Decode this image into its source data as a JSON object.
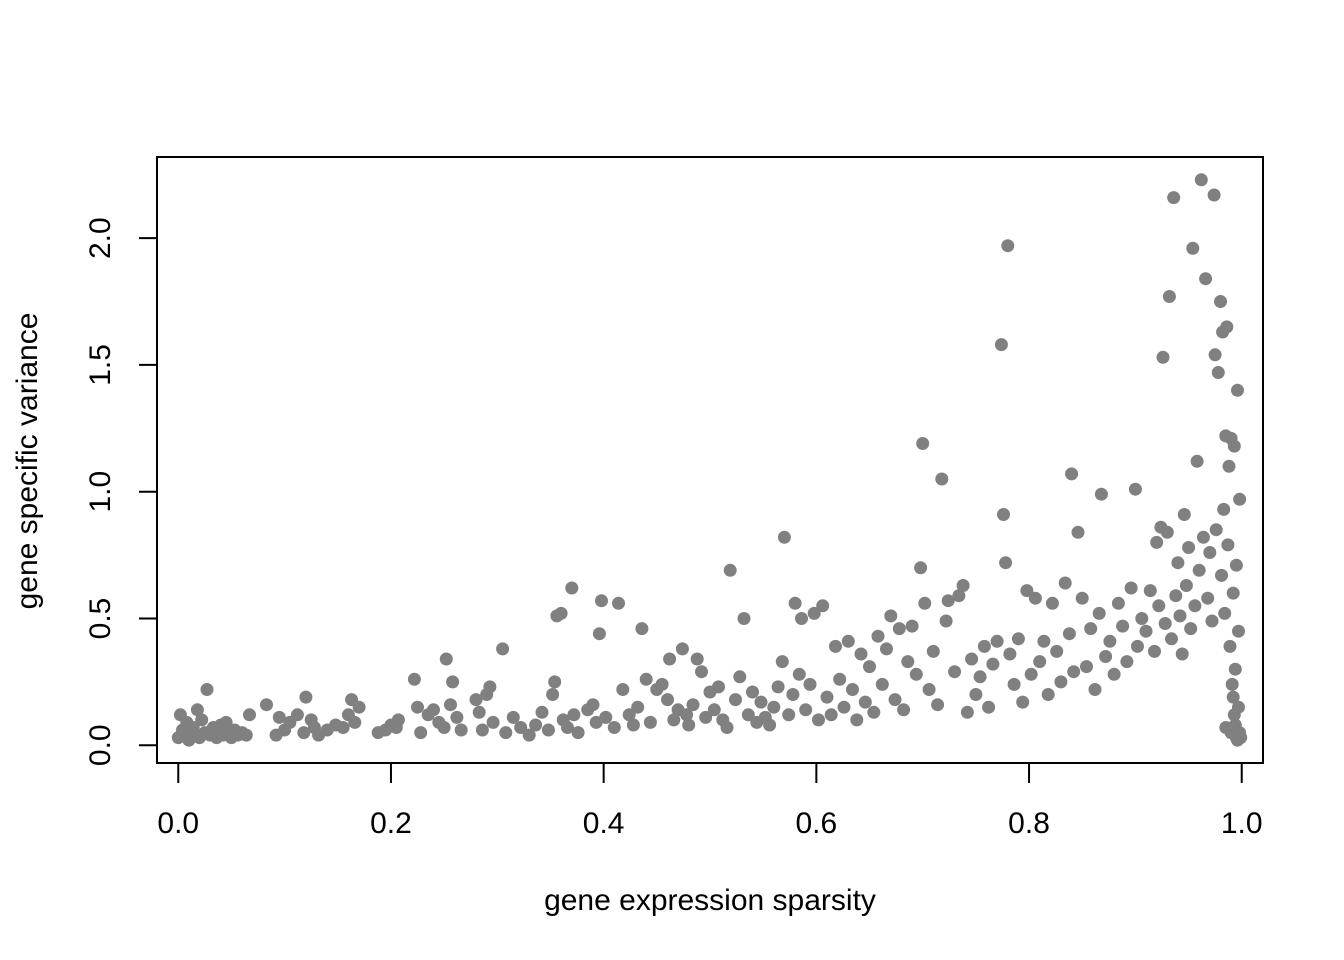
{
  "chart_data": {
    "type": "scatter",
    "title": "",
    "xlabel": "gene expression sparsity",
    "ylabel": "gene specific variance",
    "xlim": [
      -0.02,
      1.02
    ],
    "ylim": [
      -0.07,
      2.32
    ],
    "x_ticks": [
      0.0,
      0.2,
      0.4,
      0.6,
      0.8,
      1.0
    ],
    "x_tick_labels": [
      "0.0",
      "0.2",
      "0.4",
      "0.6",
      "0.8",
      "1.0"
    ],
    "y_ticks": [
      0.0,
      0.5,
      1.0,
      1.5,
      2.0
    ],
    "y_tick_labels": [
      "0.0",
      "0.5",
      "1.0",
      "1.5",
      "2.0"
    ],
    "grid": false,
    "point_color": "#808080",
    "series": [
      {
        "points": [
          [
            0.0,
            0.03
          ],
          [
            0.002,
            0.12
          ],
          [
            0.004,
            0.06
          ],
          [
            0.006,
            0.04
          ],
          [
            0.008,
            0.09
          ],
          [
            0.01,
            0.02
          ],
          [
            0.012,
            0.05
          ],
          [
            0.014,
            0.07
          ],
          [
            0.017,
            0.04
          ],
          [
            0.018,
            0.14
          ],
          [
            0.02,
            0.03
          ],
          [
            0.022,
            0.1
          ],
          [
            0.025,
            0.05
          ],
          [
            0.027,
            0.22
          ],
          [
            0.03,
            0.04
          ],
          [
            0.033,
            0.07
          ],
          [
            0.036,
            0.03
          ],
          [
            0.038,
            0.06
          ],
          [
            0.04,
            0.08
          ],
          [
            0.042,
            0.04
          ],
          [
            0.045,
            0.09
          ],
          [
            0.048,
            0.05
          ],
          [
            0.05,
            0.03
          ],
          [
            0.053,
            0.06
          ],
          [
            0.056,
            0.04
          ],
          [
            0.06,
            0.05
          ],
          [
            0.064,
            0.04
          ],
          [
            0.067,
            0.12
          ],
          [
            0.083,
            0.16
          ],
          [
            0.092,
            0.04
          ],
          [
            0.095,
            0.11
          ],
          [
            0.1,
            0.06
          ],
          [
            0.105,
            0.09
          ],
          [
            0.112,
            0.12
          ],
          [
            0.118,
            0.05
          ],
          [
            0.12,
            0.19
          ],
          [
            0.125,
            0.1
          ],
          [
            0.128,
            0.07
          ],
          [
            0.132,
            0.04
          ],
          [
            0.14,
            0.06
          ],
          [
            0.148,
            0.08
          ],
          [
            0.155,
            0.07
          ],
          [
            0.16,
            0.12
          ],
          [
            0.163,
            0.18
          ],
          [
            0.166,
            0.09
          ],
          [
            0.17,
            0.15
          ],
          [
            0.188,
            0.05
          ],
          [
            0.195,
            0.06
          ],
          [
            0.2,
            0.08
          ],
          [
            0.205,
            0.07
          ],
          [
            0.207,
            0.1
          ],
          [
            0.222,
            0.26
          ],
          [
            0.225,
            0.15
          ],
          [
            0.228,
            0.05
          ],
          [
            0.235,
            0.12
          ],
          [
            0.24,
            0.14
          ],
          [
            0.245,
            0.09
          ],
          [
            0.25,
            0.07
          ],
          [
            0.252,
            0.34
          ],
          [
            0.256,
            0.16
          ],
          [
            0.258,
            0.25
          ],
          [
            0.262,
            0.11
          ],
          [
            0.266,
            0.06
          ],
          [
            0.28,
            0.18
          ],
          [
            0.283,
            0.13
          ],
          [
            0.286,
            0.06
          ],
          [
            0.29,
            0.2
          ],
          [
            0.293,
            0.23
          ],
          [
            0.296,
            0.09
          ],
          [
            0.305,
            0.38
          ],
          [
            0.308,
            0.05
          ],
          [
            0.315,
            0.11
          ],
          [
            0.322,
            0.07
          ],
          [
            0.33,
            0.04
          ],
          [
            0.336,
            0.08
          ],
          [
            0.342,
            0.13
          ],
          [
            0.348,
            0.06
          ],
          [
            0.352,
            0.2
          ],
          [
            0.354,
            0.25
          ],
          [
            0.356,
            0.51
          ],
          [
            0.36,
            0.52
          ],
          [
            0.362,
            0.1
          ],
          [
            0.366,
            0.07
          ],
          [
            0.37,
            0.62
          ],
          [
            0.372,
            0.12
          ],
          [
            0.376,
            0.05
          ],
          [
            0.385,
            0.14
          ],
          [
            0.39,
            0.16
          ],
          [
            0.393,
            0.09
          ],
          [
            0.396,
            0.44
          ],
          [
            0.398,
            0.57
          ],
          [
            0.402,
            0.11
          ],
          [
            0.41,
            0.07
          ],
          [
            0.414,
            0.56
          ],
          [
            0.418,
            0.22
          ],
          [
            0.424,
            0.12
          ],
          [
            0.428,
            0.08
          ],
          [
            0.432,
            0.15
          ],
          [
            0.436,
            0.46
          ],
          [
            0.44,
            0.26
          ],
          [
            0.444,
            0.09
          ],
          [
            0.45,
            0.22
          ],
          [
            0.455,
            0.24
          ],
          [
            0.46,
            0.18
          ],
          [
            0.462,
            0.34
          ],
          [
            0.466,
            0.1
          ],
          [
            0.47,
            0.14
          ],
          [
            0.474,
            0.38
          ],
          [
            0.478,
            0.12
          ],
          [
            0.48,
            0.08
          ],
          [
            0.484,
            0.16
          ],
          [
            0.488,
            0.34
          ],
          [
            0.492,
            0.29
          ],
          [
            0.496,
            0.11
          ],
          [
            0.5,
            0.21
          ],
          [
            0.504,
            0.14
          ],
          [
            0.508,
            0.23
          ],
          [
            0.512,
            0.1
          ],
          [
            0.516,
            0.07
          ],
          [
            0.519,
            0.69
          ],
          [
            0.524,
            0.18
          ],
          [
            0.528,
            0.27
          ],
          [
            0.532,
            0.5
          ],
          [
            0.536,
            0.12
          ],
          [
            0.54,
            0.21
          ],
          [
            0.544,
            0.09
          ],
          [
            0.548,
            0.17
          ],
          [
            0.552,
            0.11
          ],
          [
            0.556,
            0.08
          ],
          [
            0.56,
            0.15
          ],
          [
            0.564,
            0.23
          ],
          [
            0.568,
            0.33
          ],
          [
            0.57,
            0.82
          ],
          [
            0.574,
            0.12
          ],
          [
            0.578,
            0.2
          ],
          [
            0.58,
            0.56
          ],
          [
            0.584,
            0.28
          ],
          [
            0.586,
            0.5
          ],
          [
            0.59,
            0.14
          ],
          [
            0.594,
            0.24
          ],
          [
            0.598,
            0.52
          ],
          [
            0.602,
            0.1
          ],
          [
            0.606,
            0.55
          ],
          [
            0.61,
            0.19
          ],
          [
            0.614,
            0.12
          ],
          [
            0.618,
            0.39
          ],
          [
            0.622,
            0.26
          ],
          [
            0.626,
            0.15
          ],
          [
            0.63,
            0.41
          ],
          [
            0.634,
            0.22
          ],
          [
            0.638,
            0.1
          ],
          [
            0.642,
            0.36
          ],
          [
            0.646,
            0.17
          ],
          [
            0.65,
            0.31
          ],
          [
            0.654,
            0.13
          ],
          [
            0.658,
            0.43
          ],
          [
            0.662,
            0.24
          ],
          [
            0.666,
            0.38
          ],
          [
            0.67,
            0.51
          ],
          [
            0.674,
            0.18
          ],
          [
            0.678,
            0.46
          ],
          [
            0.682,
            0.14
          ],
          [
            0.686,
            0.33
          ],
          [
            0.69,
            0.47
          ],
          [
            0.694,
            0.28
          ],
          [
            0.698,
            0.7
          ],
          [
            0.7,
            1.19
          ],
          [
            0.702,
            0.56
          ],
          [
            0.706,
            0.22
          ],
          [
            0.71,
            0.37
          ],
          [
            0.714,
            0.16
          ],
          [
            0.718,
            1.05
          ],
          [
            0.722,
            0.49
          ],
          [
            0.724,
            0.57
          ],
          [
            0.73,
            0.29
          ],
          [
            0.734,
            0.59
          ],
          [
            0.738,
            0.63
          ],
          [
            0.742,
            0.13
          ],
          [
            0.746,
            0.34
          ],
          [
            0.75,
            0.2
          ],
          [
            0.754,
            0.27
          ],
          [
            0.758,
            0.39
          ],
          [
            0.762,
            0.15
          ],
          [
            0.766,
            0.32
          ],
          [
            0.77,
            0.41
          ],
          [
            0.774,
            1.58
          ],
          [
            0.776,
            0.91
          ],
          [
            0.778,
            0.72
          ],
          [
            0.78,
            1.97
          ],
          [
            0.782,
            0.36
          ],
          [
            0.786,
            0.24
          ],
          [
            0.79,
            0.42
          ],
          [
            0.794,
            0.17
          ],
          [
            0.798,
            0.61
          ],
          [
            0.802,
            0.28
          ],
          [
            0.806,
            0.58
          ],
          [
            0.81,
            0.33
          ],
          [
            0.814,
            0.41
          ],
          [
            0.818,
            0.2
          ],
          [
            0.822,
            0.56
          ],
          [
            0.826,
            0.37
          ],
          [
            0.83,
            0.25
          ],
          [
            0.834,
            0.64
          ],
          [
            0.838,
            0.44
          ],
          [
            0.84,
            1.07
          ],
          [
            0.842,
            0.29
          ],
          [
            0.846,
            0.84
          ],
          [
            0.85,
            0.58
          ],
          [
            0.854,
            0.31
          ],
          [
            0.858,
            0.46
          ],
          [
            0.862,
            0.22
          ],
          [
            0.866,
            0.52
          ],
          [
            0.868,
            0.99
          ],
          [
            0.872,
            0.35
          ],
          [
            0.876,
            0.41
          ],
          [
            0.88,
            0.28
          ],
          [
            0.884,
            0.56
          ],
          [
            0.888,
            0.47
          ],
          [
            0.892,
            0.33
          ],
          [
            0.896,
            0.62
          ],
          [
            0.9,
            1.01
          ],
          [
            0.902,
            0.39
          ],
          [
            0.906,
            0.5
          ],
          [
            0.91,
            0.45
          ],
          [
            0.914,
            0.61
          ],
          [
            0.918,
            0.37
          ],
          [
            0.92,
            0.8
          ],
          [
            0.922,
            0.55
          ],
          [
            0.924,
            0.86
          ],
          [
            0.926,
            1.53
          ],
          [
            0.928,
            0.48
          ],
          [
            0.93,
            0.84
          ],
          [
            0.932,
            1.77
          ],
          [
            0.934,
            0.42
          ],
          [
            0.936,
            2.16
          ],
          [
            0.938,
            0.59
          ],
          [
            0.94,
            0.72
          ],
          [
            0.942,
            0.51
          ],
          [
            0.944,
            0.36
          ],
          [
            0.946,
            0.91
          ],
          [
            0.948,
            0.63
          ],
          [
            0.95,
            0.78
          ],
          [
            0.952,
            0.46
          ],
          [
            0.954,
            1.96
          ],
          [
            0.956,
            0.55
          ],
          [
            0.958,
            1.12
          ],
          [
            0.96,
            0.69
          ],
          [
            0.962,
            2.23
          ],
          [
            0.964,
            0.82
          ],
          [
            0.966,
            1.84
          ],
          [
            0.968,
            0.58
          ],
          [
            0.97,
            0.76
          ],
          [
            0.972,
            0.49
          ],
          [
            0.974,
            2.17
          ],
          [
            0.975,
            1.54
          ],
          [
            0.976,
            0.85
          ],
          [
            0.978,
            1.47
          ],
          [
            0.98,
            1.75
          ],
          [
            0.981,
            0.67
          ],
          [
            0.982,
            1.63
          ],
          [
            0.983,
            0.93
          ],
          [
            0.984,
            0.52
          ],
          [
            0.985,
            1.22
          ],
          [
            0.986,
            1.65
          ],
          [
            0.987,
            0.79
          ],
          [
            0.988,
            1.1
          ],
          [
            0.989,
            0.39
          ],
          [
            0.99,
            1.21
          ],
          [
            0.991,
            0.24
          ],
          [
            0.992,
            0.6
          ],
          [
            0.993,
            1.18
          ],
          [
            0.994,
            0.08
          ],
          [
            0.995,
            0.71
          ],
          [
            0.996,
            1.4
          ],
          [
            0.997,
            0.15
          ],
          [
            0.998,
            0.97
          ],
          [
            0.999,
            0.03
          ],
          [
            0.995,
            0.03
          ],
          [
            0.99,
            0.05
          ],
          [
            0.985,
            0.07
          ],
          [
            0.993,
            0.12
          ],
          [
            0.997,
            0.45
          ],
          [
            0.996,
            0.02
          ],
          [
            0.994,
            0.3
          ],
          [
            0.992,
            0.19
          ],
          [
            0.998,
            0.05
          ]
        ]
      }
    ]
  }
}
